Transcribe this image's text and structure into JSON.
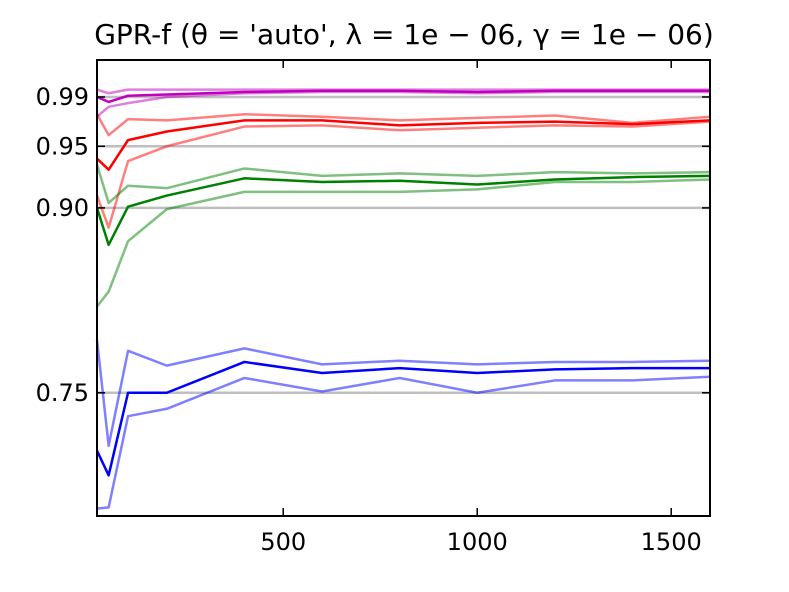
{
  "chart_data": {
    "type": "line",
    "title": "GPR-f (θ = 'auto', λ = 1e − 06, γ = 1e − 06)",
    "xlabel": "",
    "ylabel": "",
    "xlim": [
      20,
      1600
    ],
    "ylim": [
      0.65,
      1.02
    ],
    "x_ticks": [
      {
        "value": 500,
        "label": "500"
      },
      {
        "value": 1000,
        "label": "1000"
      },
      {
        "value": 1500,
        "label": "1500"
      }
    ],
    "y_ticks": [
      {
        "value": 0.75,
        "label": "0.75"
      },
      {
        "value": 0.9,
        "label": "0.90"
      },
      {
        "value": 0.95,
        "label": "0.95"
      },
      {
        "value": 0.99,
        "label": "0.99"
      }
    ],
    "reference_lines": [
      0.75,
      0.9,
      0.95,
      0.99
    ],
    "grid": false,
    "legend": "none",
    "colors": {
      "reference": "#bfbfbf",
      "magenta": "#bf00bf",
      "red": "#ff0000",
      "green": "#008000",
      "blue": "#0000ff"
    },
    "x": [
      20,
      50,
      100,
      200,
      400,
      600,
      800,
      1000,
      1200,
      1400,
      1600
    ],
    "series": [
      {
        "color_key": "magenta",
        "band": "upper",
        "values": [
          0.996,
          0.993,
          0.996,
          0.996,
          0.996,
          0.996,
          0.996,
          0.996,
          0.996,
          0.996,
          0.996
        ]
      },
      {
        "color_key": "magenta",
        "band": "mean",
        "values": [
          0.99,
          0.986,
          0.991,
          0.992,
          0.994,
          0.995,
          0.995,
          0.994,
          0.995,
          0.995,
          0.995
        ]
      },
      {
        "color_key": "magenta",
        "band": "lower",
        "values": [
          0.974,
          0.982,
          0.985,
          0.99,
          0.993,
          0.994,
          0.994,
          0.993,
          0.994,
          0.994,
          0.994
        ]
      },
      {
        "color_key": "red",
        "band": "upper",
        "values": [
          0.976,
          0.959,
          0.972,
          0.971,
          0.976,
          0.974,
          0.971,
          0.973,
          0.975,
          0.969,
          0.974
        ]
      },
      {
        "color_key": "red",
        "band": "mean",
        "values": [
          0.94,
          0.931,
          0.955,
          0.962,
          0.971,
          0.971,
          0.967,
          0.969,
          0.97,
          0.968,
          0.971
        ]
      },
      {
        "color_key": "red",
        "band": "lower",
        "values": [
          0.91,
          0.884,
          0.938,
          0.95,
          0.966,
          0.967,
          0.963,
          0.965,
          0.967,
          0.966,
          0.97
        ]
      },
      {
        "color_key": "green",
        "band": "upper",
        "values": [
          0.935,
          0.904,
          0.918,
          0.916,
          0.932,
          0.926,
          0.928,
          0.926,
          0.929,
          0.928,
          0.929
        ]
      },
      {
        "color_key": "green",
        "band": "mean",
        "values": [
          0.9,
          0.87,
          0.901,
          0.91,
          0.924,
          0.921,
          0.922,
          0.919,
          0.923,
          0.925,
          0.926
        ]
      },
      {
        "color_key": "green",
        "band": "lower",
        "values": [
          0.82,
          0.832,
          0.873,
          0.899,
          0.913,
          0.913,
          0.913,
          0.915,
          0.921,
          0.921,
          0.923
        ]
      },
      {
        "color_key": "blue",
        "band": "upper",
        "values": [
          0.793,
          0.707,
          0.784,
          0.772,
          0.786,
          0.773,
          0.776,
          0.773,
          0.775,
          0.775,
          0.776
        ]
      },
      {
        "color_key": "blue",
        "band": "mean",
        "values": [
          0.703,
          0.683,
          0.75,
          0.75,
          0.775,
          0.766,
          0.77,
          0.766,
          0.769,
          0.77,
          0.77
        ]
      },
      {
        "color_key": "blue",
        "band": "lower",
        "values": [
          0.656,
          0.657,
          0.731,
          0.737,
          0.762,
          0.751,
          0.762,
          0.75,
          0.76,
          0.76,
          0.763
        ]
      }
    ]
  }
}
